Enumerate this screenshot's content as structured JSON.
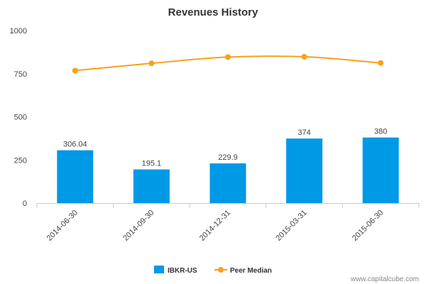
{
  "chart_data": {
    "type": "bar",
    "title": "Revenues History",
    "xlabel": "",
    "ylabel": "",
    "categories": [
      "2014-06-30",
      "2014-09-30",
      "2014-12-31",
      "2015-03-31",
      "2015-06-30"
    ],
    "series": [
      {
        "name": "IBKR-US",
        "type": "bar",
        "color": "#0099e6",
        "values": [
          306.04,
          195.1,
          229.9,
          374,
          380
        ],
        "labels": [
          "306.04",
          "195.1",
          "229.9",
          "374",
          "380"
        ]
      },
      {
        "name": "Peer Median",
        "type": "line",
        "color": "#f7a11a",
        "values": [
          768,
          810,
          846,
          848,
          812
        ]
      }
    ],
    "ylim": [
      0,
      1000
    ],
    "yticks": [
      0,
      250,
      500,
      750,
      1000
    ],
    "grid": false,
    "legend": "bottom-center"
  },
  "watermark": "www.capitalcube.com"
}
